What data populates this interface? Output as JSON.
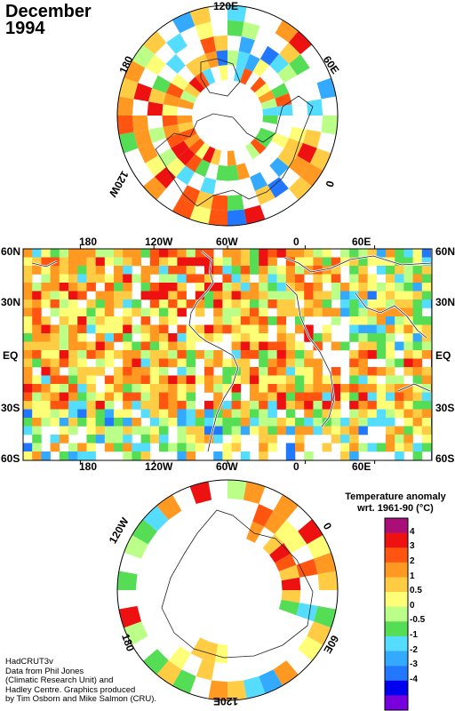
{
  "title": {
    "month": "December",
    "year": "1994"
  },
  "north_polar": {
    "labels": [
      "120E",
      "60E",
      "0",
      "120W",
      "180"
    ]
  },
  "main_map": {
    "lat_labels": [
      "60N",
      "30N",
      "EQ",
      "30S",
      "60S"
    ],
    "lon_labels": [
      "180",
      "120W",
      "60W",
      "0",
      "60E"
    ]
  },
  "south_polar": {
    "labels": [
      "120W",
      "0",
      "60E",
      "180",
      "120E"
    ]
  },
  "legend": {
    "title_line1": "Temperature anomaly",
    "title_line2": "wrt. 1961-90  (°C)",
    "ticks": [
      "4",
      "3",
      "2",
      "1",
      "0.5",
      "0",
      "-0.5",
      "-1",
      "-2",
      "-3",
      "-4"
    ],
    "colors": [
      "#aa0f77",
      "#ee1111",
      "#ff5511",
      "#ff9922",
      "#ffcc44",
      "#ffff77",
      "#bbff88",
      "#55dd55",
      "#55ddff",
      "#33aaff",
      "#2277ff",
      "#0000ee",
      "#7700dd"
    ]
  },
  "credits": [
    "HadCRUT3v",
    "Data from Phil Jones",
    "(Climatic Research Unit) and",
    "Hadley Centre.  Graphics produced",
    "by Tim Osborn and Mike Salmon (CRU)."
  ]
}
